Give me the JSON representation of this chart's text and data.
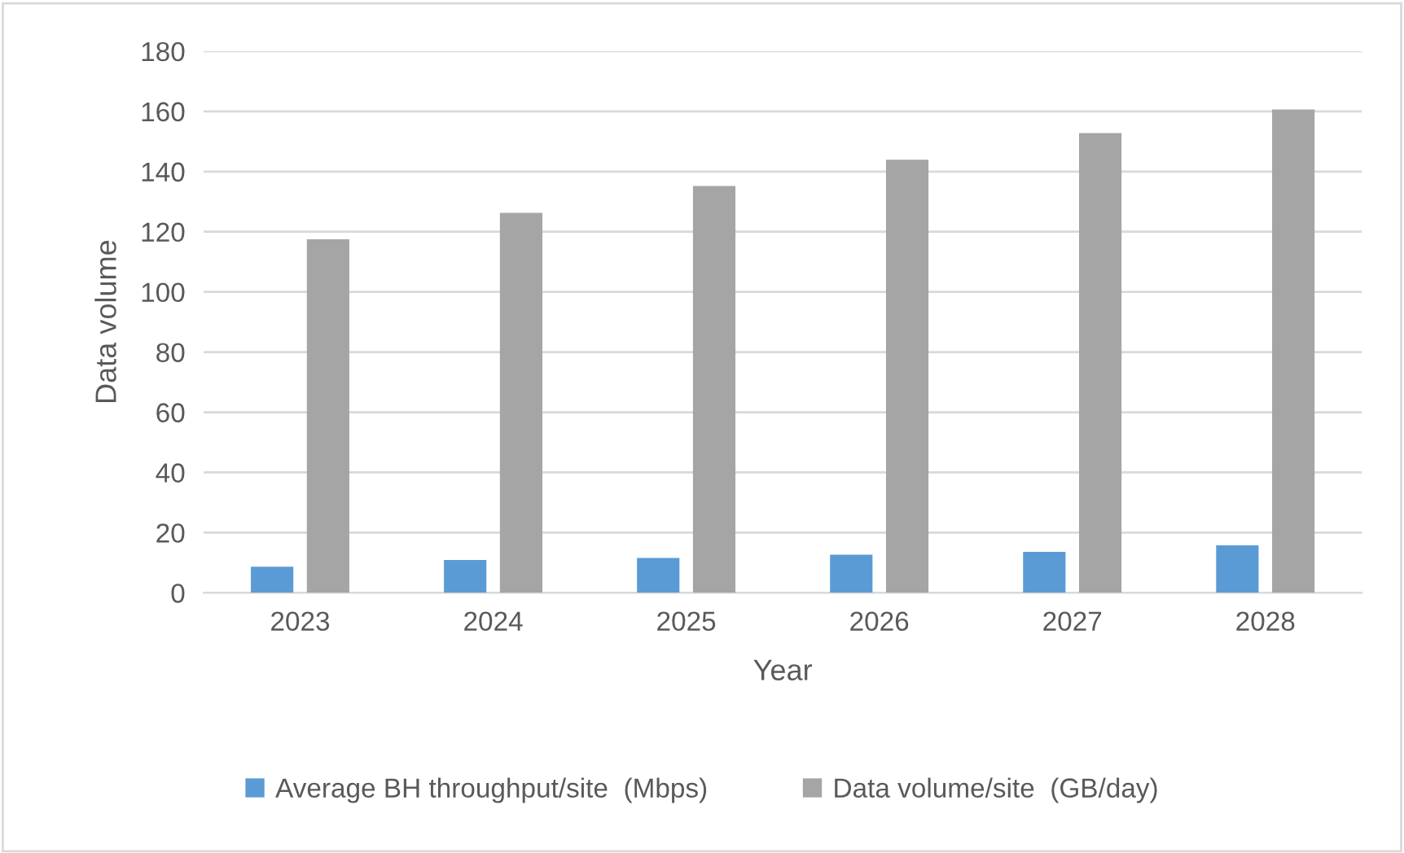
{
  "chart_data": {
    "type": "bar",
    "xlabel": "Year",
    "ylabel": "Data volume",
    "categories": [
      "2023",
      "2024",
      "2025",
      "2026",
      "2027",
      "2028"
    ],
    "series": [
      {
        "name": "Average BH throughput/site  (Mbps)",
        "color": "#5b9bd5",
        "values": [
          8.7,
          10.9,
          11.6,
          12.7,
          13.6,
          15.8
        ]
      },
      {
        "name": "Data volume/site  (GB/day)",
        "color": "#a5a5a5",
        "values": [
          117.5,
          126.3,
          135.2,
          143.9,
          152.8,
          160.6
        ]
      }
    ],
    "ylim": [
      0,
      180
    ],
    "yticks": [
      0,
      20,
      40,
      60,
      80,
      100,
      120,
      140,
      160,
      180
    ],
    "grid": "y",
    "legend": "bottom"
  }
}
